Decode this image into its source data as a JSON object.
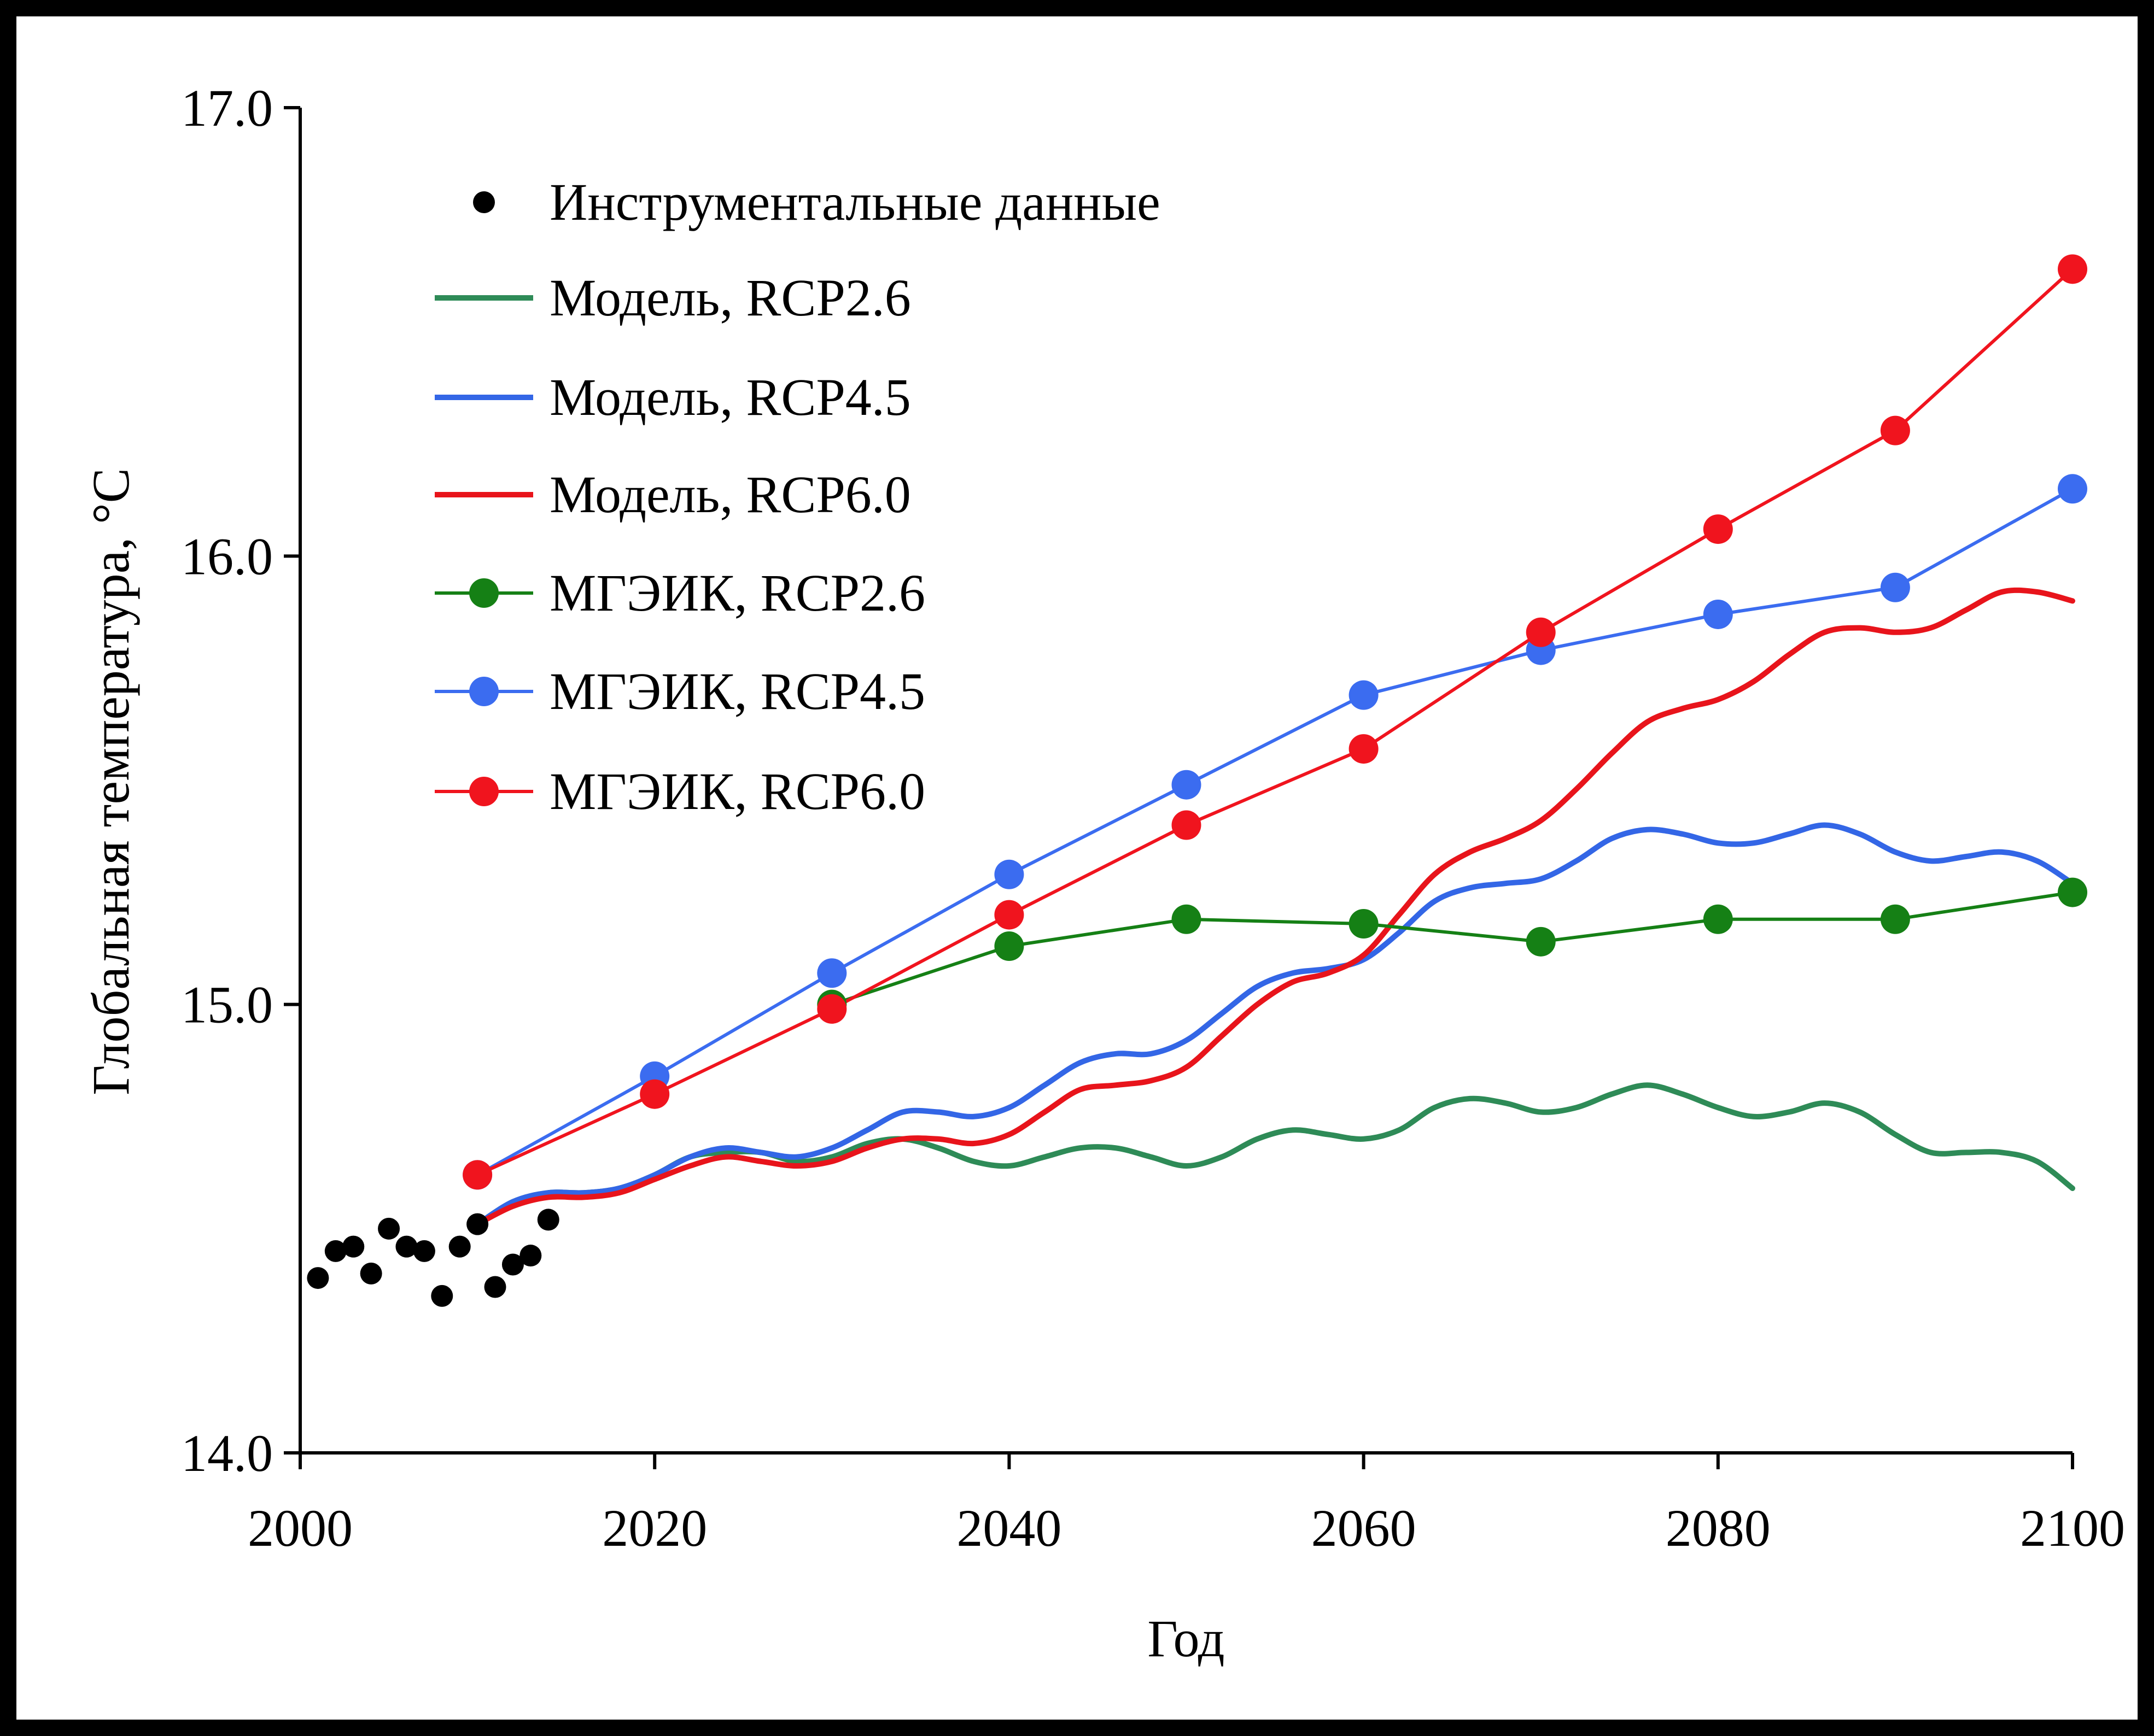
{
  "chart_data": {
    "type": "line",
    "xlabel": "Год",
    "ylabel": "Глобальная температура, °С",
    "xlim": [
      2000,
      2100
    ],
    "ylim": [
      14.0,
      17.0
    ],
    "x_ticks": [
      "2000",
      "2020",
      "2040",
      "2060",
      "2080",
      "2100"
    ],
    "y_ticks": [
      "14.0",
      "15.0",
      "16.0",
      "17.0"
    ],
    "grid": false,
    "legend_position": "top-left",
    "series": [
      {
        "name": "Инструментальные данные",
        "kind": "scatter",
        "color": "#000000",
        "x": [
          2001,
          2002,
          2003,
          2004,
          2005,
          2006,
          2007,
          2008,
          2009,
          2010,
          2011,
          2012,
          2013,
          2014
        ],
        "y": [
          14.39,
          14.45,
          14.46,
          14.4,
          14.5,
          14.46,
          14.45,
          14.35,
          14.46,
          14.51,
          14.37,
          14.42,
          14.44,
          14.52
        ]
      },
      {
        "name": "Модель, RCP2.6",
        "kind": "line",
        "color": "#2e8b57",
        "x": [
          2010,
          2012,
          2014,
          2016,
          2018,
          2020,
          2022,
          2024,
          2026,
          2028,
          2030,
          2032,
          2034,
          2036,
          2038,
          2040,
          2042,
          2044,
          2046,
          2048,
          2050,
          2052,
          2054,
          2056,
          2058,
          2060,
          2062,
          2064,
          2066,
          2068,
          2070,
          2072,
          2074,
          2076,
          2078,
          2080,
          2082,
          2084,
          2086,
          2088,
          2090,
          2092,
          2094,
          2096,
          2098,
          2100
        ],
        "y": [
          14.51,
          14.56,
          14.58,
          14.58,
          14.59,
          14.62,
          14.66,
          14.67,
          14.67,
          14.65,
          14.66,
          14.69,
          14.7,
          14.68,
          14.65,
          14.64,
          14.66,
          14.68,
          14.68,
          14.66,
          14.64,
          14.66,
          14.7,
          14.72,
          14.71,
          14.7,
          14.72,
          14.77,
          14.79,
          14.78,
          14.76,
          14.77,
          14.8,
          14.82,
          14.8,
          14.77,
          14.75,
          14.76,
          14.78,
          14.76,
          14.71,
          14.67,
          14.67,
          14.67,
          14.65,
          14.59
        ]
      },
      {
        "name": "Модель, RCP4.5",
        "kind": "line",
        "color": "#3366e6",
        "x": [
          2010,
          2012,
          2014,
          2016,
          2018,
          2020,
          2022,
          2024,
          2026,
          2028,
          2030,
          2032,
          2034,
          2036,
          2038,
          2040,
          2042,
          2044,
          2046,
          2048,
          2050,
          2052,
          2054,
          2056,
          2058,
          2060,
          2062,
          2064,
          2066,
          2068,
          2070,
          2072,
          2074,
          2076,
          2078,
          2080,
          2082,
          2084,
          2086,
          2088,
          2090,
          2092,
          2094,
          2096,
          2098,
          2100
        ],
        "y": [
          14.51,
          14.56,
          14.58,
          14.58,
          14.59,
          14.62,
          14.66,
          14.68,
          14.67,
          14.66,
          14.68,
          14.72,
          14.76,
          14.76,
          14.75,
          14.77,
          14.82,
          14.87,
          14.89,
          14.89,
          14.92,
          14.98,
          15.04,
          15.07,
          15.08,
          15.1,
          15.16,
          15.23,
          15.26,
          15.27,
          15.28,
          15.32,
          15.37,
          15.39,
          15.38,
          15.36,
          15.36,
          15.38,
          15.4,
          15.38,
          15.34,
          15.32,
          15.33,
          15.34,
          15.32,
          15.27
        ]
      },
      {
        "name": "Модель, RCP6.0",
        "kind": "line",
        "color": "#e8141b",
        "x": [
          2010,
          2012,
          2014,
          2016,
          2018,
          2020,
          2022,
          2024,
          2026,
          2028,
          2030,
          2032,
          2034,
          2036,
          2038,
          2040,
          2042,
          2044,
          2046,
          2048,
          2050,
          2052,
          2054,
          2056,
          2058,
          2060,
          2062,
          2064,
          2066,
          2068,
          2070,
          2072,
          2074,
          2076,
          2078,
          2080,
          2082,
          2084,
          2086,
          2088,
          2090,
          2092,
          2094,
          2096,
          2098,
          2100
        ],
        "y": [
          14.51,
          14.55,
          14.57,
          14.57,
          14.58,
          14.61,
          14.64,
          14.66,
          14.65,
          14.64,
          14.65,
          14.68,
          14.7,
          14.7,
          14.69,
          14.71,
          14.76,
          14.81,
          14.82,
          14.83,
          14.86,
          14.93,
          15.0,
          15.05,
          15.07,
          15.11,
          15.2,
          15.29,
          15.34,
          15.37,
          15.41,
          15.48,
          15.56,
          15.63,
          15.66,
          15.68,
          15.72,
          15.78,
          15.83,
          15.84,
          15.83,
          15.84,
          15.88,
          15.92,
          15.92,
          15.9
        ]
      },
      {
        "name": "МГЭИК, RCP2.6",
        "kind": "line-marker",
        "color": "#158015",
        "x": [
          2030,
          2040,
          2050,
          2060,
          2070,
          2080,
          2090,
          2100
        ],
        "y": [
          15.0,
          15.13,
          15.19,
          15.18,
          15.14,
          15.19,
          15.19,
          15.25
        ]
      },
      {
        "name": "МГЭИК, RCP4.5",
        "kind": "line-marker",
        "color": "#3b6cf0",
        "x": [
          2010,
          2020,
          2030,
          2040,
          2050,
          2060,
          2070,
          2080,
          2090,
          2100
        ],
        "y": [
          14.62,
          14.84,
          15.07,
          15.29,
          15.49,
          15.69,
          15.79,
          15.87,
          15.93,
          16.15
        ]
      },
      {
        "name": "МГЭИК, RCP6.0",
        "kind": "line-marker",
        "color": "#f0141e",
        "x": [
          2010,
          2020,
          2030,
          2040,
          2050,
          2060,
          2070,
          2080,
          2090,
          2100
        ],
        "y": [
          14.62,
          14.8,
          14.99,
          15.2,
          15.4,
          15.57,
          15.83,
          16.06,
          16.28,
          16.64
        ]
      }
    ]
  }
}
